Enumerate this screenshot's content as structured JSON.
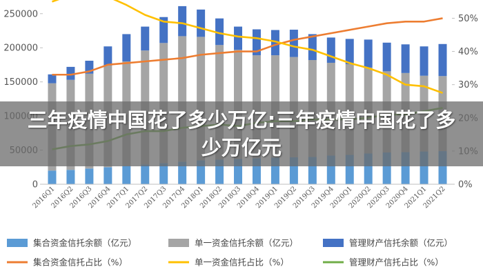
{
  "overlay_title": "三年疫情中国花了多少万亿:三年疫情中国花了多少万亿元",
  "chart_data": {
    "type": "bar",
    "stacked": true,
    "categories": [
      "2016Q1",
      "2016Q2",
      "2016Q3",
      "2016Q4",
      "2017Q1",
      "2017Q2",
      "2017Q3",
      "2017Q4",
      "2018Q1",
      "2018Q2",
      "2018Q3",
      "2018Q4",
      "2019Q1",
      "2019Q2",
      "2019Q3",
      "2019Q4",
      "2020Q1",
      "2020Q2",
      "2020Q3",
      "2020Q4",
      "2021Q1",
      "2021Q2"
    ],
    "series": [
      {
        "name": "集合资金信托余额（亿元）",
        "kind": "bar",
        "axis": "left",
        "color": "#5b9bd5",
        "values": [
          20000,
          21000,
          23000,
          25000,
          27000,
          29000,
          31000,
          33000,
          35000,
          36000,
          37000,
          38000,
          39000,
          39500,
          40000,
          42000,
          43000,
          45000,
          46500,
          47000,
          48000,
          48500
        ]
      },
      {
        "name": "单一资金信托余额（亿元）",
        "kind": "bar",
        "axis": "left",
        "color": "#a5a5a5",
        "values": [
          128000,
          132000,
          139000,
          149000,
          153000,
          167000,
          176000,
          184000,
          181000,
          168000,
          160000,
          151000,
          150000,
          147000,
          142000,
          136000,
          133000,
          126000,
          119000,
          116000,
          111000,
          110000
        ]
      },
      {
        "name": "管理财产信托余额（亿元）",
        "kind": "bar",
        "axis": "left",
        "color": "#4472c4",
        "values": [
          13000,
          19000,
          19000,
          28000,
          40000,
          35000,
          38000,
          44000,
          40000,
          39000,
          34000,
          38000,
          37000,
          40000,
          38000,
          37000,
          37000,
          41000,
          42000,
          42000,
          43000,
          47000
        ]
      },
      {
        "name": "集合资金信托占比（%）",
        "kind": "line",
        "axis": "right",
        "color": "#ed7d31",
        "values": [
          33,
          33,
          34,
          36,
          36.5,
          37,
          37.5,
          38,
          39,
          39.5,
          40,
          40,
          42,
          43.5,
          44.5,
          45.5,
          46.5,
          47.5,
          48.5,
          49,
          49,
          50
        ]
      },
      {
        "name": "单一资金信托占比（%）",
        "kind": "line",
        "axis": "right",
        "color": "#ffc000",
        "values": [
          55,
          57,
          59,
          56.5,
          54,
          51,
          49,
          48.5,
          47,
          45.5,
          44.5,
          44,
          43,
          41.5,
          40.5,
          38.5,
          36.5,
          35,
          33,
          30,
          29.5,
          27.5
        ]
      },
      {
        "name": "管理财产信托占比（%）",
        "kind": "line",
        "axis": "right",
        "color": "#70ad47",
        "values": [
          10.5,
          11.5,
          12,
          13,
          15,
          16,
          16,
          17,
          17.5,
          18,
          17.5,
          18.5,
          19,
          19,
          19.5,
          19.5,
          19.5,
          20,
          21,
          21,
          22,
          23
        ]
      }
    ],
    "yleft": {
      "min": 0,
      "max": 270000,
      "ticks": [
        0,
        50000,
        100000,
        150000,
        200000,
        250000
      ]
    },
    "yright": {
      "min": 0,
      "max": 55.5,
      "ticks": [
        "0%",
        "10%",
        "20%",
        "30%",
        "40%",
        "50%"
      ]
    },
    "legend_position": "bottom",
    "grid": false
  }
}
